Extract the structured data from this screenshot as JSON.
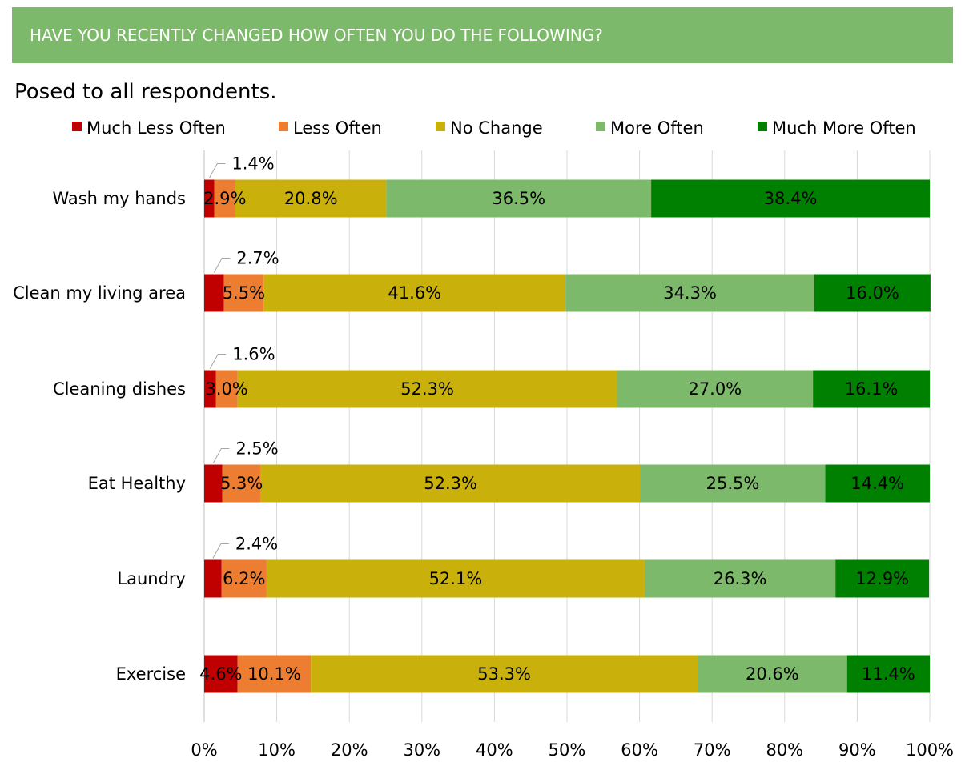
{
  "header": {
    "title": "HAVE YOU RECENTLY CHANGED HOW OFTEN YOU DO THE FOLLOWING?"
  },
  "subtitle": "Posed to all respondents.",
  "chart_data": {
    "type": "bar",
    "orientation": "horizontal",
    "stacked": true,
    "categories": [
      "Wash my hands",
      "Clean my living area",
      "Cleaning dishes",
      "Eat Healthy",
      "Laundry",
      "Exercise"
    ],
    "series": [
      {
        "name": "Much Less Often",
        "color": "#c00000",
        "values": [
          1.4,
          2.7,
          1.6,
          2.5,
          2.4,
          4.6
        ]
      },
      {
        "name": "Less Often",
        "color": "#ed7d31",
        "values": [
          2.9,
          5.5,
          3.0,
          5.3,
          6.2,
          10.1
        ]
      },
      {
        "name": "No Change",
        "color": "#c9b00a",
        "values": [
          20.8,
          41.6,
          52.3,
          52.3,
          52.1,
          53.3
        ]
      },
      {
        "name": "More Often",
        "color": "#7db96a",
        "values": [
          36.5,
          34.3,
          27.0,
          25.5,
          26.3,
          20.6
        ]
      },
      {
        "name": "Much More Often",
        "color": "#008000",
        "values": [
          38.4,
          16.0,
          16.1,
          14.4,
          12.9,
          11.4
        ]
      }
    ],
    "data_labels": [
      [
        "1.4%",
        "2.9%",
        "20.8%",
        "36.5%",
        "38.4%"
      ],
      [
        "2.7%",
        "5.5%",
        "41.6%",
        "34.3%",
        "16.0%"
      ],
      [
        "1.6%",
        "3.0%",
        "52.3%",
        "27.0%",
        "16.1%"
      ],
      [
        "2.5%",
        "5.3%",
        "52.3%",
        "25.5%",
        "14.4%"
      ],
      [
        "2.4%",
        "6.2%",
        "52.1%",
        "26.3%",
        "12.9%"
      ],
      [
        "4.6%",
        "10.1%",
        "53.3%",
        "20.6%",
        "11.4%"
      ]
    ],
    "x_ticks": [
      "0%",
      "10%",
      "20%",
      "30%",
      "40%",
      "50%",
      "60%",
      "70%",
      "80%",
      "90%",
      "100%"
    ],
    "xlim": [
      0,
      100
    ],
    "grid": true,
    "legend": "top"
  }
}
